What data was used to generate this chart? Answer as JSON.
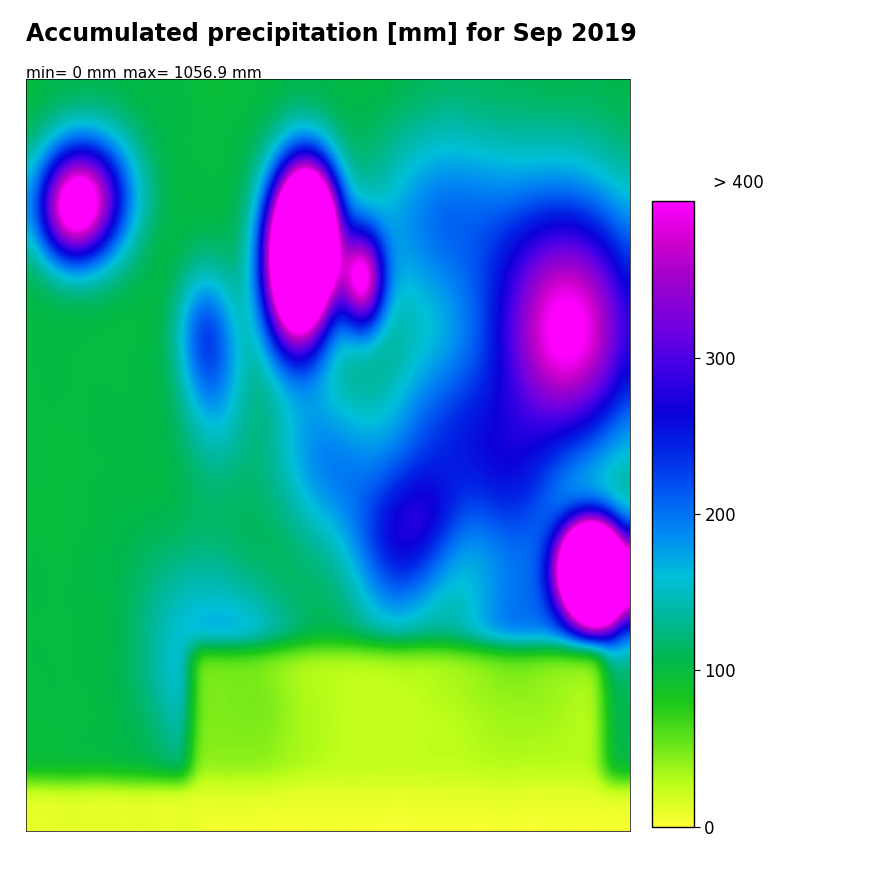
{
  "title": "Accumulated precipitation [mm] for Sep 2019",
  "min_label": "min= 0 mm",
  "max_label": "max= 1056.9 mm",
  "colorbar_ticks": [
    0,
    100,
    200,
    300
  ],
  "colorbar_label_extra": "> 400",
  "vmin": 0,
  "vmax": 400,
  "lon_min": -25,
  "lon_max": 45,
  "lat_min": 27,
  "lat_max": 72,
  "title_fontsize": 17,
  "label_fontsize": 11,
  "colorbar_fontsize": 12,
  "background_color": "#ffffff",
  "seed": 42
}
